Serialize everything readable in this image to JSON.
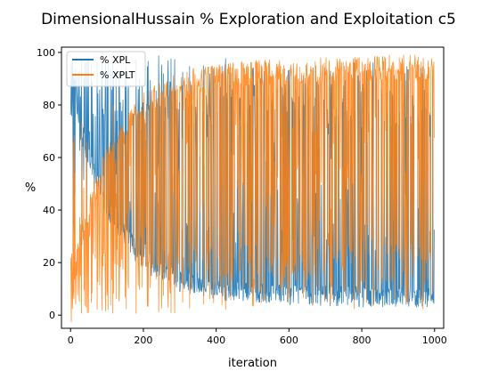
{
  "chart_data": {
    "type": "line",
    "title": "DimensionalHussain % Exploration and Exploitation c5",
    "xlabel": "iteration",
    "ylabel": "%",
    "xlim": [
      -25,
      1025
    ],
    "ylim": [
      -5,
      102
    ],
    "x_ticks": [
      0,
      200,
      400,
      600,
      800,
      1000
    ],
    "y_ticks": [
      0,
      20,
      40,
      60,
      80,
      100
    ],
    "x_tick_labels": [
      "0",
      "200",
      "400",
      "600",
      "800",
      "1000"
    ],
    "y_tick_labels": [
      "0",
      "20",
      "40",
      "60",
      "80",
      "100"
    ],
    "grid": false,
    "legend_position": "top-left",
    "n_iterations": 1000,
    "series": [
      {
        "name": "% XPL",
        "color": "#1f77b4",
        "description_points": [
          [
            0,
            100
          ],
          [
            10,
            90
          ],
          [
            25,
            70
          ],
          [
            100,
            40
          ],
          [
            200,
            20
          ],
          [
            300,
            12
          ],
          [
            400,
            9
          ],
          [
            600,
            7
          ],
          [
            800,
            6
          ],
          [
            1000,
            6
          ]
        ]
      },
      {
        "name": "% XPLT",
        "color": "#ff7f0e",
        "description_points": [
          [
            0,
            0
          ],
          [
            10,
            10
          ],
          [
            25,
            30
          ],
          [
            100,
            60
          ],
          [
            200,
            80
          ],
          [
            300,
            88
          ],
          [
            400,
            91
          ],
          [
            600,
            93
          ],
          [
            800,
            94
          ],
          [
            1000,
            94
          ]
        ]
      }
    ]
  }
}
